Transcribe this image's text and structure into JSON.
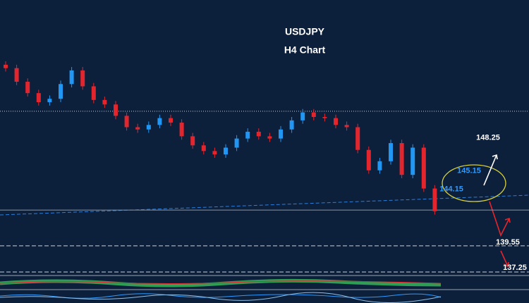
{
  "chart_data": {
    "type": "candlestick",
    "title": "USDJPY",
    "subtitle": "H4 Chart",
    "ylim": [
      137.0,
      161.2
    ],
    "up_color": "#2196f3",
    "down_color": "#e3262e",
    "open": [
      155.5,
      155.2,
      154.0,
      153.0,
      152.2,
      152.5,
      153.8,
      155.0,
      153.6,
      152.4,
      152.0,
      151.0,
      150.0,
      149.8,
      150.2,
      150.8,
      150.4,
      149.2,
      148.4,
      147.9,
      147.6,
      148.2,
      149.0,
      149.6,
      149.2,
      149.0,
      149.8,
      150.6,
      151.3,
      150.9,
      150.8,
      150.2,
      150.0,
      148.0,
      146.2,
      147.0,
      148.6,
      145.8,
      148.2,
      144.6
    ],
    "high": [
      155.8,
      155.5,
      154.3,
      153.3,
      152.8,
      154.1,
      155.3,
      155.3,
      153.9,
      152.7,
      152.3,
      151.3,
      150.3,
      150.5,
      151.1,
      151.1,
      150.7,
      149.5,
      148.7,
      148.2,
      148.5,
      149.3,
      149.9,
      149.9,
      149.5,
      150.1,
      150.9,
      151.6,
      151.6,
      151.2,
      151.1,
      150.5,
      150.3,
      148.3,
      147.3,
      148.9,
      148.9,
      148.5,
      148.5,
      144.9
    ],
    "low": [
      154.9,
      153.7,
      152.7,
      151.9,
      151.9,
      152.2,
      153.5,
      153.3,
      152.1,
      151.7,
      150.7,
      149.7,
      149.5,
      149.5,
      149.9,
      150.1,
      148.9,
      148.1,
      147.6,
      147.3,
      147.3,
      147.9,
      148.7,
      148.9,
      148.7,
      148.7,
      149.5,
      150.3,
      150.6,
      150.5,
      149.9,
      149.7,
      147.7,
      145.9,
      145.9,
      146.7,
      145.5,
      145.5,
      144.3,
      142.3
    ],
    "close": [
      155.2,
      154.0,
      153.0,
      152.2,
      152.5,
      153.8,
      155.0,
      153.6,
      152.4,
      152.0,
      151.0,
      150.0,
      149.8,
      150.2,
      150.8,
      150.4,
      149.2,
      148.4,
      147.9,
      147.6,
      148.2,
      149.0,
      149.6,
      149.2,
      149.0,
      149.8,
      150.6,
      151.3,
      150.9,
      150.8,
      150.2,
      150.0,
      148.0,
      146.2,
      147.0,
      148.6,
      145.8,
      148.2,
      144.6,
      142.6
    ],
    "levels": [
      {
        "value": 151.4,
        "style": "dotted",
        "color": "#c8d0dc"
      },
      {
        "value": 142.7,
        "style": "solid",
        "color": "#8a96a8"
      },
      {
        "value": 139.55,
        "style": "dashed",
        "color": "#c8d0dc"
      },
      {
        "value": 137.25,
        "style": "dashed",
        "color": "#c8d0dc"
      }
    ],
    "annotations": [
      {
        "value": 148.25,
        "color": "#ffffff"
      },
      {
        "value": 145.15,
        "color": "#2f9bff"
      },
      {
        "value": 144.15,
        "color": "#2f9bff"
      },
      {
        "value": 139.55,
        "color": "#ffffff"
      },
      {
        "value": 137.25,
        "color": "#ffffff"
      }
    ]
  }
}
